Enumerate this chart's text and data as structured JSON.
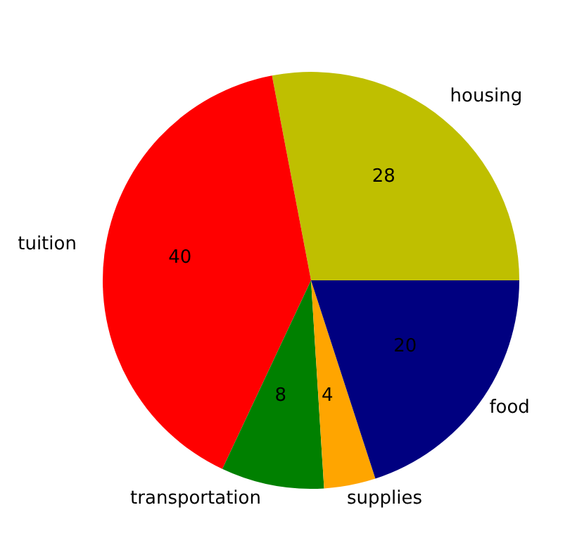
{
  "chart_data": {
    "type": "pie",
    "categories": [
      "housing",
      "tuition",
      "transportation",
      "supplies",
      "food"
    ],
    "values": [
      28,
      40,
      8,
      4,
      20
    ],
    "colors": [
      "#bfbf00",
      "#ff0000",
      "#008000",
      "#ffa500",
      "#000080"
    ],
    "data_labels": true
  }
}
